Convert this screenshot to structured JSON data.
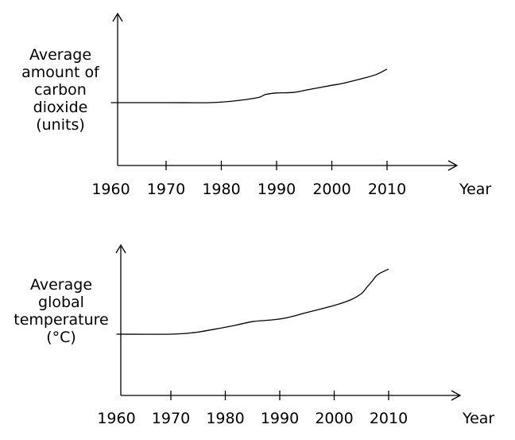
{
  "chart_data": [
    {
      "type": "line",
      "ylabel_lines": [
        "Average",
        "amount of",
        "carbon",
        "dioxide",
        "(units)"
      ],
      "xlabel": "Year",
      "x_ticks": [
        1960,
        1970,
        1980,
        1990,
        2000,
        2010
      ],
      "x_tick_labels": [
        "1960",
        "1970",
        "1980",
        "1990",
        "2000",
        "2010"
      ],
      "xlim": [
        1960,
        2010
      ],
      "y_ticks": [],
      "grid": false,
      "series": [
        {
          "x": [
            1960,
            1970,
            1978,
            1982,
            1985,
            1987,
            1988,
            1990,
            1993,
            1996,
            2000,
            2002,
            2005,
            2008,
            2010
          ],
          "y": [
            0.0,
            0.0,
            0.0,
            0.03,
            0.07,
            0.11,
            0.16,
            0.19,
            0.2,
            0.26,
            0.34,
            0.38,
            0.46,
            0.55,
            0.66
          ]
        }
      ]
    },
    {
      "type": "line",
      "ylabel_lines": [
        "Average",
        "global",
        "temperature",
        "(°C)"
      ],
      "xlabel": "Year",
      "x_ticks": [
        1960,
        1970,
        1980,
        1990,
        2000,
        2010
      ],
      "x_tick_labels": [
        "1960",
        "1970",
        "1980",
        "1990",
        "2000",
        "2010"
      ],
      "xlim": [
        1960,
        2010
      ],
      "y_ticks": [],
      "grid": false,
      "series": [
        {
          "x": [
            1960,
            1970,
            1974,
            1978,
            1982,
            1985,
            1988,
            1991,
            1995,
            2000,
            2003,
            2005,
            2006,
            2007,
            2008,
            2010
          ],
          "y": [
            0.0,
            0.0,
            0.02,
            0.07,
            0.13,
            0.18,
            0.2,
            0.23,
            0.31,
            0.41,
            0.49,
            0.58,
            0.67,
            0.76,
            0.85,
            0.93
          ]
        }
      ]
    }
  ]
}
